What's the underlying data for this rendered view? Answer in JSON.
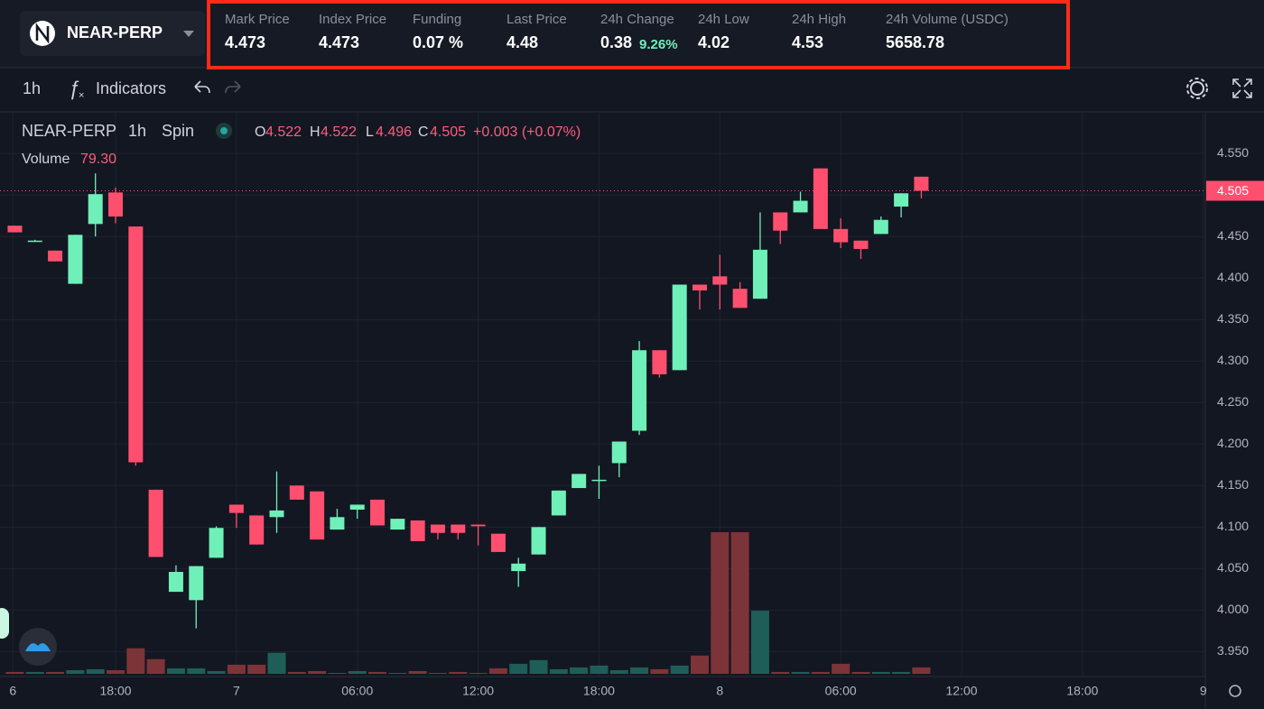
{
  "header": {
    "symbol": "NEAR-PERP",
    "stats": [
      {
        "label": "Mark Price",
        "value": "4.473",
        "color": "#ffffff"
      },
      {
        "label": "Index Price",
        "value": "4.473",
        "color": "#ffffff"
      },
      {
        "label": "Funding",
        "value": "0.07 %",
        "color": "#6ff0b8"
      },
      {
        "label": "Last Price",
        "value": "4.48",
        "color": "#ff5c7a"
      },
      {
        "label": "24h Change",
        "value": "0.38",
        "sub": "9.26%",
        "color": "#6ff0b8"
      },
      {
        "label": "24h Low",
        "value": "4.02",
        "color": "#ffffff"
      },
      {
        "label": "24h High",
        "value": "4.53",
        "color": "#ffffff"
      },
      {
        "label": "24h Volume (USDC)",
        "value": "5658.78",
        "color": "#ffffff"
      }
    ]
  },
  "toolbar": {
    "interval": "1h",
    "indicators": "Indicators"
  },
  "chart": {
    "type": "candlestick",
    "legend": {
      "symbol": "NEAR-PERP",
      "interval": "1h",
      "source": "Spin",
      "o_label": "O",
      "o": "4.522",
      "h_label": "H",
      "h": "4.522",
      "l_label": "L",
      "l": "4.496",
      "c_label": "C",
      "c": "4.505",
      "change": "+0.003 (+0.07%)",
      "volume_label": "Volume",
      "volume": "79.30"
    },
    "colors": {
      "up": "#6ff0b8",
      "down": "#ff4f6e",
      "volume_up": "#1f5e58",
      "volume_down": "#7d3438"
    },
    "x": [
      13,
      14,
      15,
      16,
      17,
      18,
      19,
      20,
      21,
      22,
      23,
      24,
      25,
      26,
      27,
      28,
      29,
      30,
      31,
      32,
      33,
      34,
      35,
      36,
      37,
      38,
      39,
      40,
      41,
      42,
      43,
      44,
      45,
      46,
      47,
      48,
      49,
      50,
      51,
      52,
      53,
      54,
      55,
      56,
      57,
      58
    ],
    "open": [
      4.463,
      4.445,
      4.433,
      4.393,
      4.465,
      4.503,
      4.462,
      4.145,
      4.022,
      4.012,
      4.063,
      4.127,
      4.114,
      4.112,
      4.15,
      4.143,
      4.097,
      4.121,
      4.133,
      4.097,
      4.108,
      4.103,
      4.103,
      4.103,
      4.092,
      4.047,
      4.067,
      4.114,
      4.147,
      4.156,
      4.177,
      4.216,
      4.313,
      4.289,
      4.392,
      4.402,
      4.387,
      4.375,
      4.479,
      4.479,
      4.532,
      4.459,
      4.445,
      4.453,
      4.486,
      4.522
    ],
    "high": [
      4.463,
      4.446,
      4.433,
      4.452,
      4.526,
      4.509,
      4.462,
      4.145,
      4.054,
      4.053,
      4.101,
      4.127,
      4.114,
      4.167,
      4.15,
      4.143,
      4.122,
      4.127,
      4.133,
      4.11,
      4.108,
      4.103,
      4.103,
      4.103,
      4.092,
      4.063,
      4.1,
      4.144,
      4.164,
      4.174,
      4.203,
      4.324,
      4.313,
      4.392,
      4.392,
      4.428,
      4.395,
      4.479,
      4.479,
      4.504,
      4.532,
      4.472,
      4.445,
      4.474,
      4.502,
      4.522
    ],
    "low": [
      4.455,
      4.444,
      4.42,
      4.393,
      4.45,
      4.466,
      4.174,
      4.064,
      4.022,
      3.978,
      4.063,
      4.099,
      4.079,
      4.093,
      4.133,
      4.085,
      4.097,
      4.11,
      4.102,
      4.097,
      4.083,
      4.085,
      4.085,
      4.078,
      4.07,
      4.028,
      4.067,
      4.114,
      4.147,
      4.134,
      4.16,
      4.211,
      4.28,
      4.289,
      4.362,
      4.362,
      4.364,
      4.375,
      4.441,
      4.479,
      4.459,
      4.436,
      4.423,
      4.453,
      4.473,
      4.496
    ],
    "close": [
      4.455,
      4.445,
      4.42,
      4.452,
      4.501,
      4.474,
      4.178,
      4.064,
      4.046,
      4.053,
      4.099,
      4.117,
      4.079,
      4.12,
      4.133,
      4.085,
      4.112,
      4.127,
      4.102,
      4.11,
      4.083,
      4.093,
      4.093,
      4.101,
      4.07,
      4.056,
      4.1,
      4.144,
      4.164,
      4.157,
      4.203,
      4.313,
      4.284,
      4.392,
      4.385,
      4.392,
      4.364,
      4.434,
      4.457,
      4.493,
      4.459,
      4.443,
      4.435,
      4.47,
      4.502,
      4.505
    ],
    "volume": [
      23,
      23,
      23,
      45,
      57,
      45,
      316,
      181,
      68,
      68,
      34,
      113,
      113,
      260,
      23,
      34,
      11,
      34,
      23,
      11,
      34,
      11,
      23,
      11,
      68,
      124,
      170,
      57,
      79,
      102,
      45,
      79,
      57,
      102,
      226,
      1751,
      1751,
      780,
      23,
      23,
      23,
      124,
      23,
      23,
      23,
      79.3
    ],
    "xlim": [
      12.8,
      72.1
    ],
    "xticks": [
      {
        "value": 12.9,
        "label": "6"
      },
      {
        "value": 18,
        "label": "18:00"
      },
      {
        "value": 24,
        "label": "7"
      },
      {
        "value": 30,
        "label": "06:00"
      },
      {
        "value": 36,
        "label": "12:00"
      },
      {
        "value": 42,
        "label": "18:00"
      },
      {
        "value": 48,
        "label": "8"
      },
      {
        "value": 54,
        "label": "06:00"
      },
      {
        "value": 60,
        "label": "12:00"
      },
      {
        "value": 66,
        "label": "18:00"
      },
      {
        "value": 72,
        "label": "9"
      }
    ],
    "ylim": [
      3.92,
      4.599
    ],
    "yticks": [
      {
        "value": 3.95,
        "label": "3.950"
      },
      {
        "value": 4.0,
        "label": "4.000"
      },
      {
        "value": 4.05,
        "label": "4.050"
      },
      {
        "value": 4.1,
        "label": "4.100"
      },
      {
        "value": 4.15,
        "label": "4.150"
      },
      {
        "value": 4.2,
        "label": "4.200"
      },
      {
        "value": 4.25,
        "label": "4.250"
      },
      {
        "value": 4.3,
        "label": "4.300"
      },
      {
        "value": 4.35,
        "label": "4.350"
      },
      {
        "value": 4.4,
        "label": "4.400"
      },
      {
        "value": 4.45,
        "label": "4.450"
      },
      {
        "value": 4.5,
        "label": "4.500"
      },
      {
        "value": 4.55,
        "label": "4.550"
      }
    ],
    "price_marker": {
      "value": 4.505,
      "label": "4.505"
    },
    "grid": true
  }
}
